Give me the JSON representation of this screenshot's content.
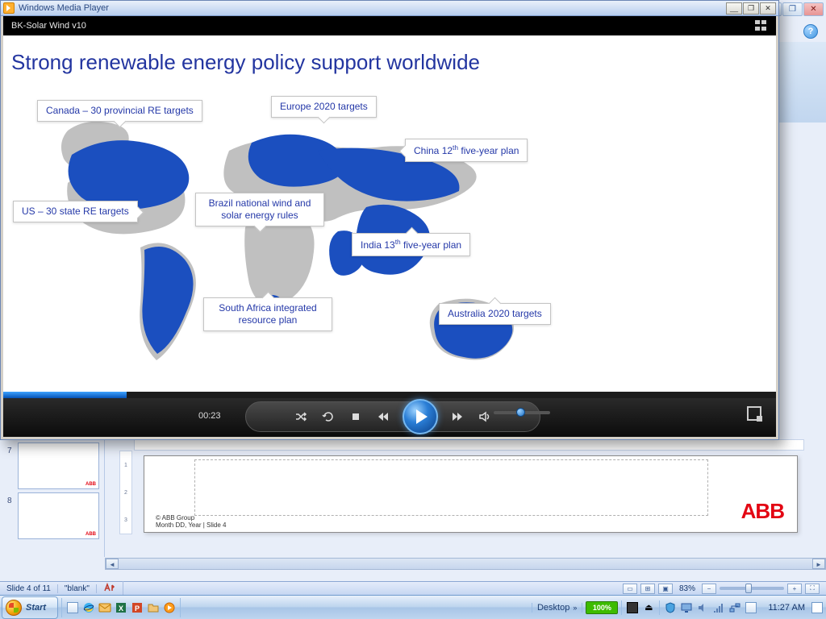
{
  "wmp": {
    "window_title": "Windows Media Player",
    "now_playing": "BK-Solar Wind v10",
    "time": "00:23",
    "seek_pct": 16,
    "volume_pct": 40
  },
  "slide": {
    "title": "Strong renewable energy policy support worldwide",
    "callouts": {
      "canada": "Canada – 30 provincial RE targets",
      "europe": "Europe 2020 targets",
      "china_pre": "China 12",
      "china_ord": "th",
      "china_post": " five-year plan",
      "us": "US – 30 state RE targets",
      "brazil": "Brazil national wind and solar energy rules",
      "india_pre": "India 13",
      "india_ord": "th",
      "india_post": " five-year plan",
      "safrica": "South Africa integrated resource plan",
      "australia": "Australia 2020 targets"
    },
    "highlight_color": "#1b4fbf",
    "land_color": "#c0c0c0"
  },
  "ppt": {
    "footer_copyright": "© ABB Group",
    "footer_meta": "Month DD, Year  |  Slide 4",
    "status_slide": "Slide 4 of 11",
    "status_theme": "\"blank\"",
    "zoom": "83%",
    "thumbs": [
      "7",
      "8"
    ],
    "brand": "ABB",
    "ruler_v": [
      "1",
      "2",
      "3"
    ]
  },
  "taskbar": {
    "start": "Start",
    "desktop_label": "Desktop",
    "battery": "100%",
    "clock": "11:27 AM"
  },
  "colors": {
    "title": "#2335a0",
    "brand": "#e30613"
  }
}
